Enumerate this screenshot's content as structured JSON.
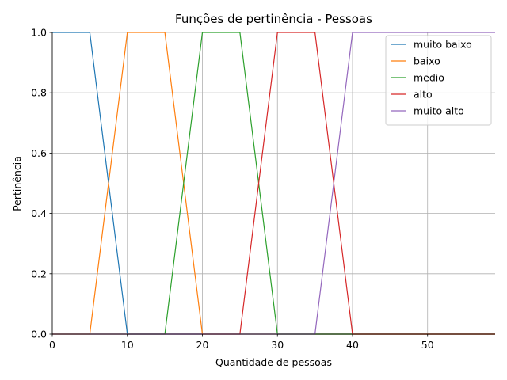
{
  "chart_data": {
    "type": "line",
    "title": "Funções de pertinência - Pessoas",
    "xlabel": "Quantidade de pessoas",
    "ylabel": "Pertinência",
    "xlim": [
      0,
      59
    ],
    "ylim": [
      0,
      1.0
    ],
    "xticks": [
      "0",
      "10",
      "20",
      "30",
      "40",
      "50"
    ],
    "yticks": [
      "0.0",
      "0.2",
      "0.4",
      "0.6",
      "0.8",
      "1.0"
    ],
    "grid": true,
    "legend_position": "top-right",
    "series": [
      {
        "name": "muito baixo",
        "color": "#1f77b4",
        "x": [
          0,
          5,
          10,
          59
        ],
        "y": [
          1,
          1,
          0,
          0
        ]
      },
      {
        "name": "baixo",
        "color": "#ff7f0e",
        "x": [
          0,
          5,
          10,
          15,
          20,
          59
        ],
        "y": [
          0,
          0,
          1,
          1,
          0,
          0
        ]
      },
      {
        "name": "medio",
        "color": "#2ca02c",
        "x": [
          0,
          15,
          20,
          25,
          30,
          59
        ],
        "y": [
          0,
          0,
          1,
          1,
          0,
          0
        ]
      },
      {
        "name": "alto",
        "color": "#d62728",
        "x": [
          0,
          25,
          30,
          35,
          40,
          59
        ],
        "y": [
          0,
          0,
          1,
          1,
          0,
          0
        ]
      },
      {
        "name": "muito alto",
        "color": "#9467bd",
        "x": [
          0,
          35,
          40,
          59
        ],
        "y": [
          0,
          0,
          1,
          1
        ]
      }
    ]
  }
}
